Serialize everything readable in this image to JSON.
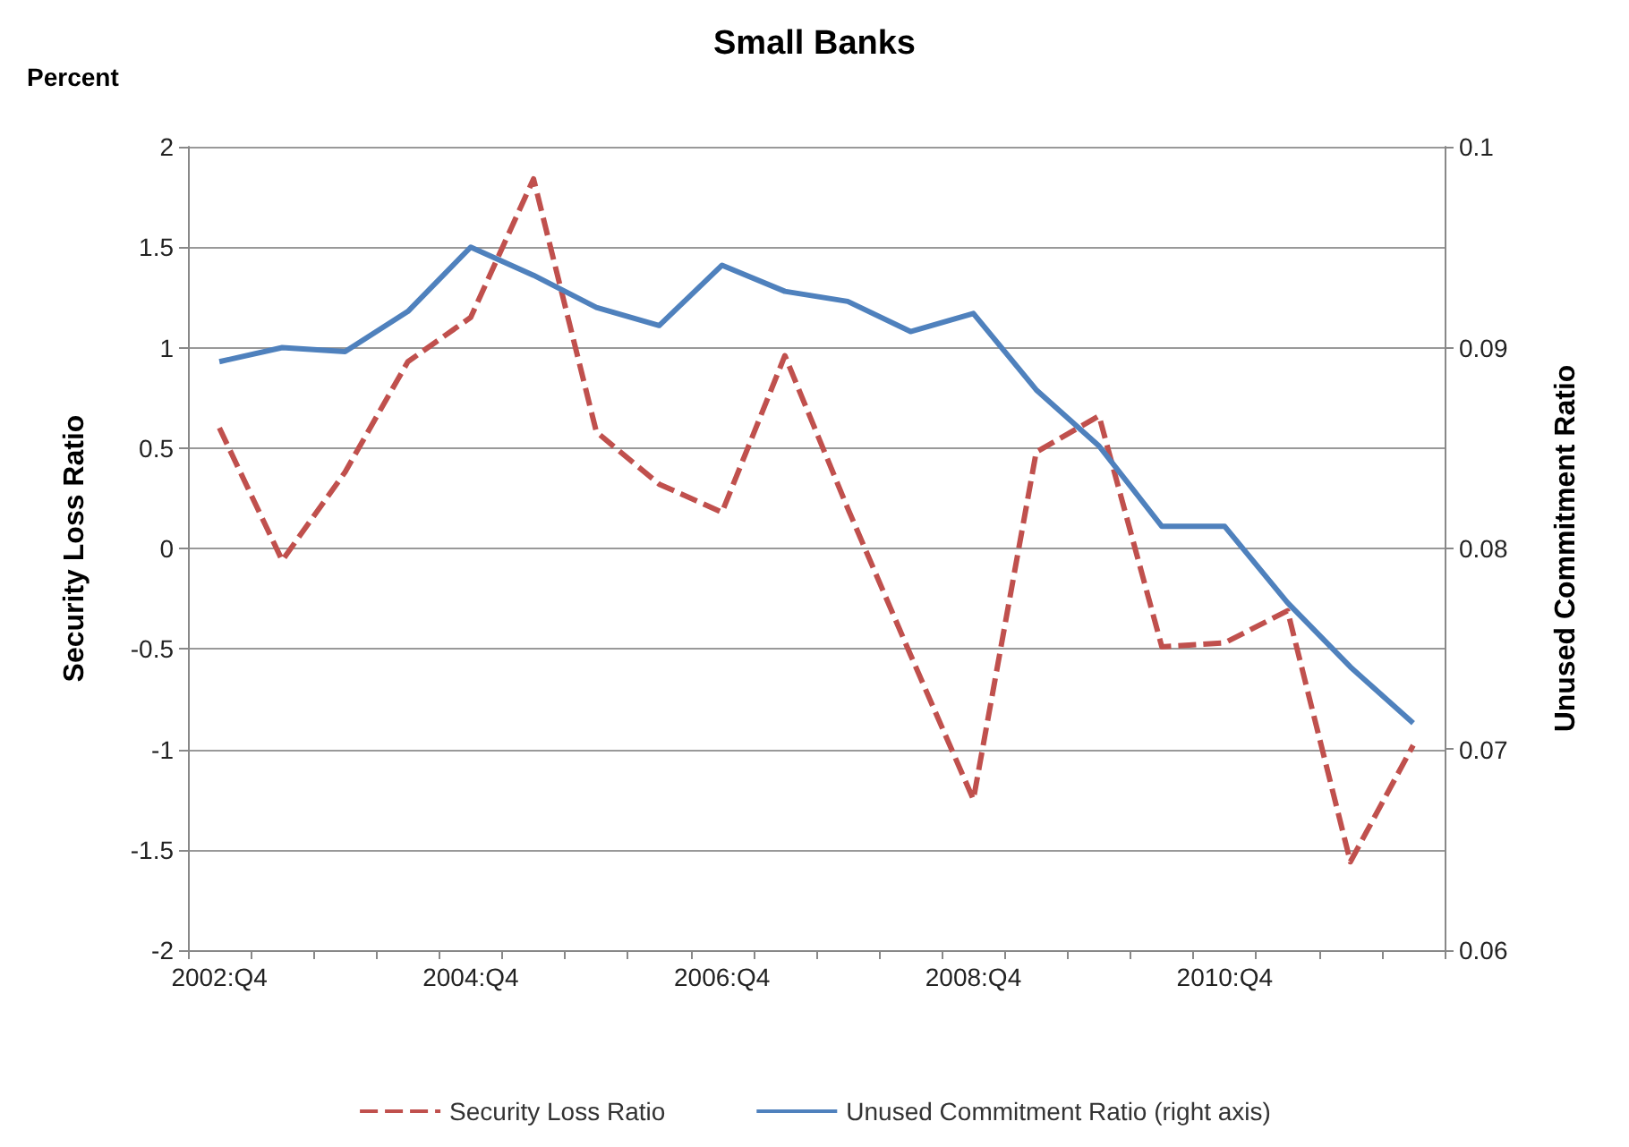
{
  "chart_data": {
    "type": "line",
    "title": "Small Banks",
    "ylabel": "Security Loss Ratio",
    "y2label": "Unused Commitment Ratio",
    "annotations": [
      "Percent"
    ],
    "categories": [
      "2002:Q4",
      null,
      null,
      null,
      "2004:Q4",
      null,
      null,
      null,
      "2006:Q4",
      null,
      null,
      null,
      "2008:Q4",
      null,
      null,
      null,
      "2010:Q4",
      null,
      null,
      null
    ],
    "series": [
      {
        "name": "Security Loss Ratio",
        "color": "#c0504d",
        "line_style": "dashed",
        "values": [
          0.6,
          -0.06,
          0.38,
          0.93,
          1.15,
          1.84,
          0.58,
          0.32,
          0.18,
          0.96,
          0.2,
          -0.53,
          -1.25,
          0.48,
          0.66,
          -0.49,
          -0.47,
          -0.31,
          -1.56,
          -0.98
        ]
      },
      {
        "name": "Unused Commitment Ratio (right axis)",
        "color": "#4f81bd",
        "line_style": "solid",
        "axis": "y2",
        "values": [
          0.0893,
          0.09,
          0.0898,
          0.0918,
          0.095,
          0.0936,
          0.092,
          0.0911,
          0.0941,
          0.0928,
          0.0923,
          0.0908,
          0.0917,
          0.0879,
          0.0851,
          0.0811,
          0.0811,
          0.0773,
          0.0741,
          0.0713
        ]
      }
    ],
    "ylim": [
      -2,
      2
    ],
    "yticks": [
      -2,
      -1.5,
      -1,
      -0.5,
      0,
      0.5,
      1,
      1.5,
      2
    ],
    "y2lim": [
      0.06,
      0.1
    ],
    "y2ticks": [
      0.06,
      0.07,
      0.08,
      0.09,
      0.1
    ],
    "grid": "y",
    "legend": "bottom",
    "marker": "none"
  }
}
